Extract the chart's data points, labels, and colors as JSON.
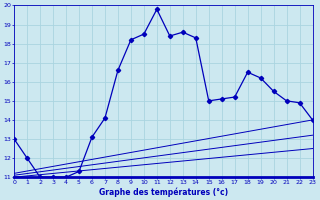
{
  "title": "Graphe des températures (°c)",
  "bg_color": "#cce8f0",
  "grid_color": "#aad4e0",
  "line_color": "#0000bb",
  "xlim": [
    0,
    23
  ],
  "ylim": [
    11,
    20
  ],
  "xticks": [
    0,
    1,
    2,
    3,
    4,
    5,
    6,
    7,
    8,
    9,
    10,
    11,
    12,
    13,
    14,
    15,
    16,
    17,
    18,
    19,
    20,
    21,
    22,
    23
  ],
  "yticks": [
    11,
    12,
    13,
    14,
    15,
    16,
    17,
    18,
    19,
    20
  ],
  "series1_x": [
    0,
    1,
    2,
    3,
    4,
    5,
    6,
    7,
    8,
    9,
    10,
    11,
    12,
    13,
    14,
    15,
    16,
    17,
    18,
    19,
    20,
    21,
    22,
    23
  ],
  "series1_y": [
    13.0,
    12.0,
    11.0,
    11.0,
    11.0,
    11.3,
    13.1,
    14.1,
    16.6,
    18.2,
    18.5,
    19.8,
    18.4,
    18.6,
    18.3,
    15.0,
    15.1,
    15.2,
    16.5,
    16.2,
    15.5,
    15.0,
    14.9,
    14.0
  ],
  "line2_x": [
    0,
    23
  ],
  "line2_y": [
    11.2,
    14.0
  ],
  "line3_x": [
    0,
    23
  ],
  "line3_y": [
    11.1,
    13.2
  ],
  "line4_x": [
    0,
    23
  ],
  "line4_y": [
    11.0,
    12.5
  ]
}
